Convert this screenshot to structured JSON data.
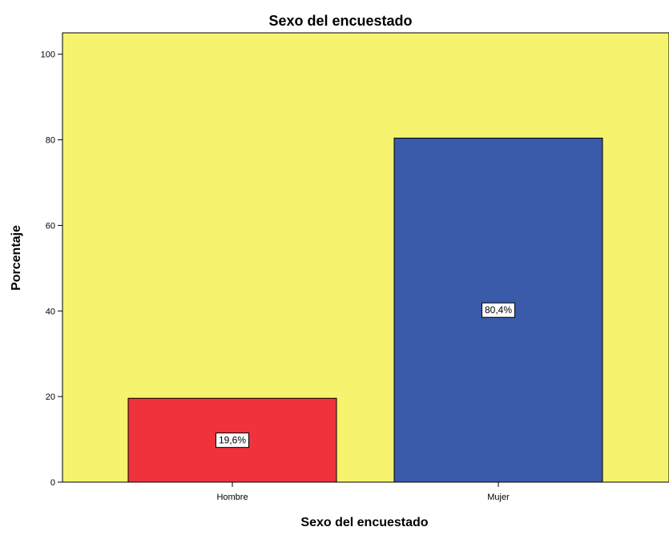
{
  "chart_data": {
    "type": "bar",
    "title": "Sexo del encuestado",
    "xlabel": "Sexo del encuestado",
    "ylabel": "Porcentaje",
    "categories": [
      "Hombre",
      "Mujer"
    ],
    "values": [
      19.6,
      80.4
    ],
    "data_labels": [
      "19,6%",
      "80,4%"
    ],
    "bar_colors": [
      "#f0323a",
      "#3a5aaa"
    ],
    "plot_background": "#f6f36e",
    "ylim": [
      0,
      105
    ],
    "yticks": [
      0,
      20,
      40,
      60,
      80,
      100
    ],
    "grid": false,
    "legend": false
  }
}
